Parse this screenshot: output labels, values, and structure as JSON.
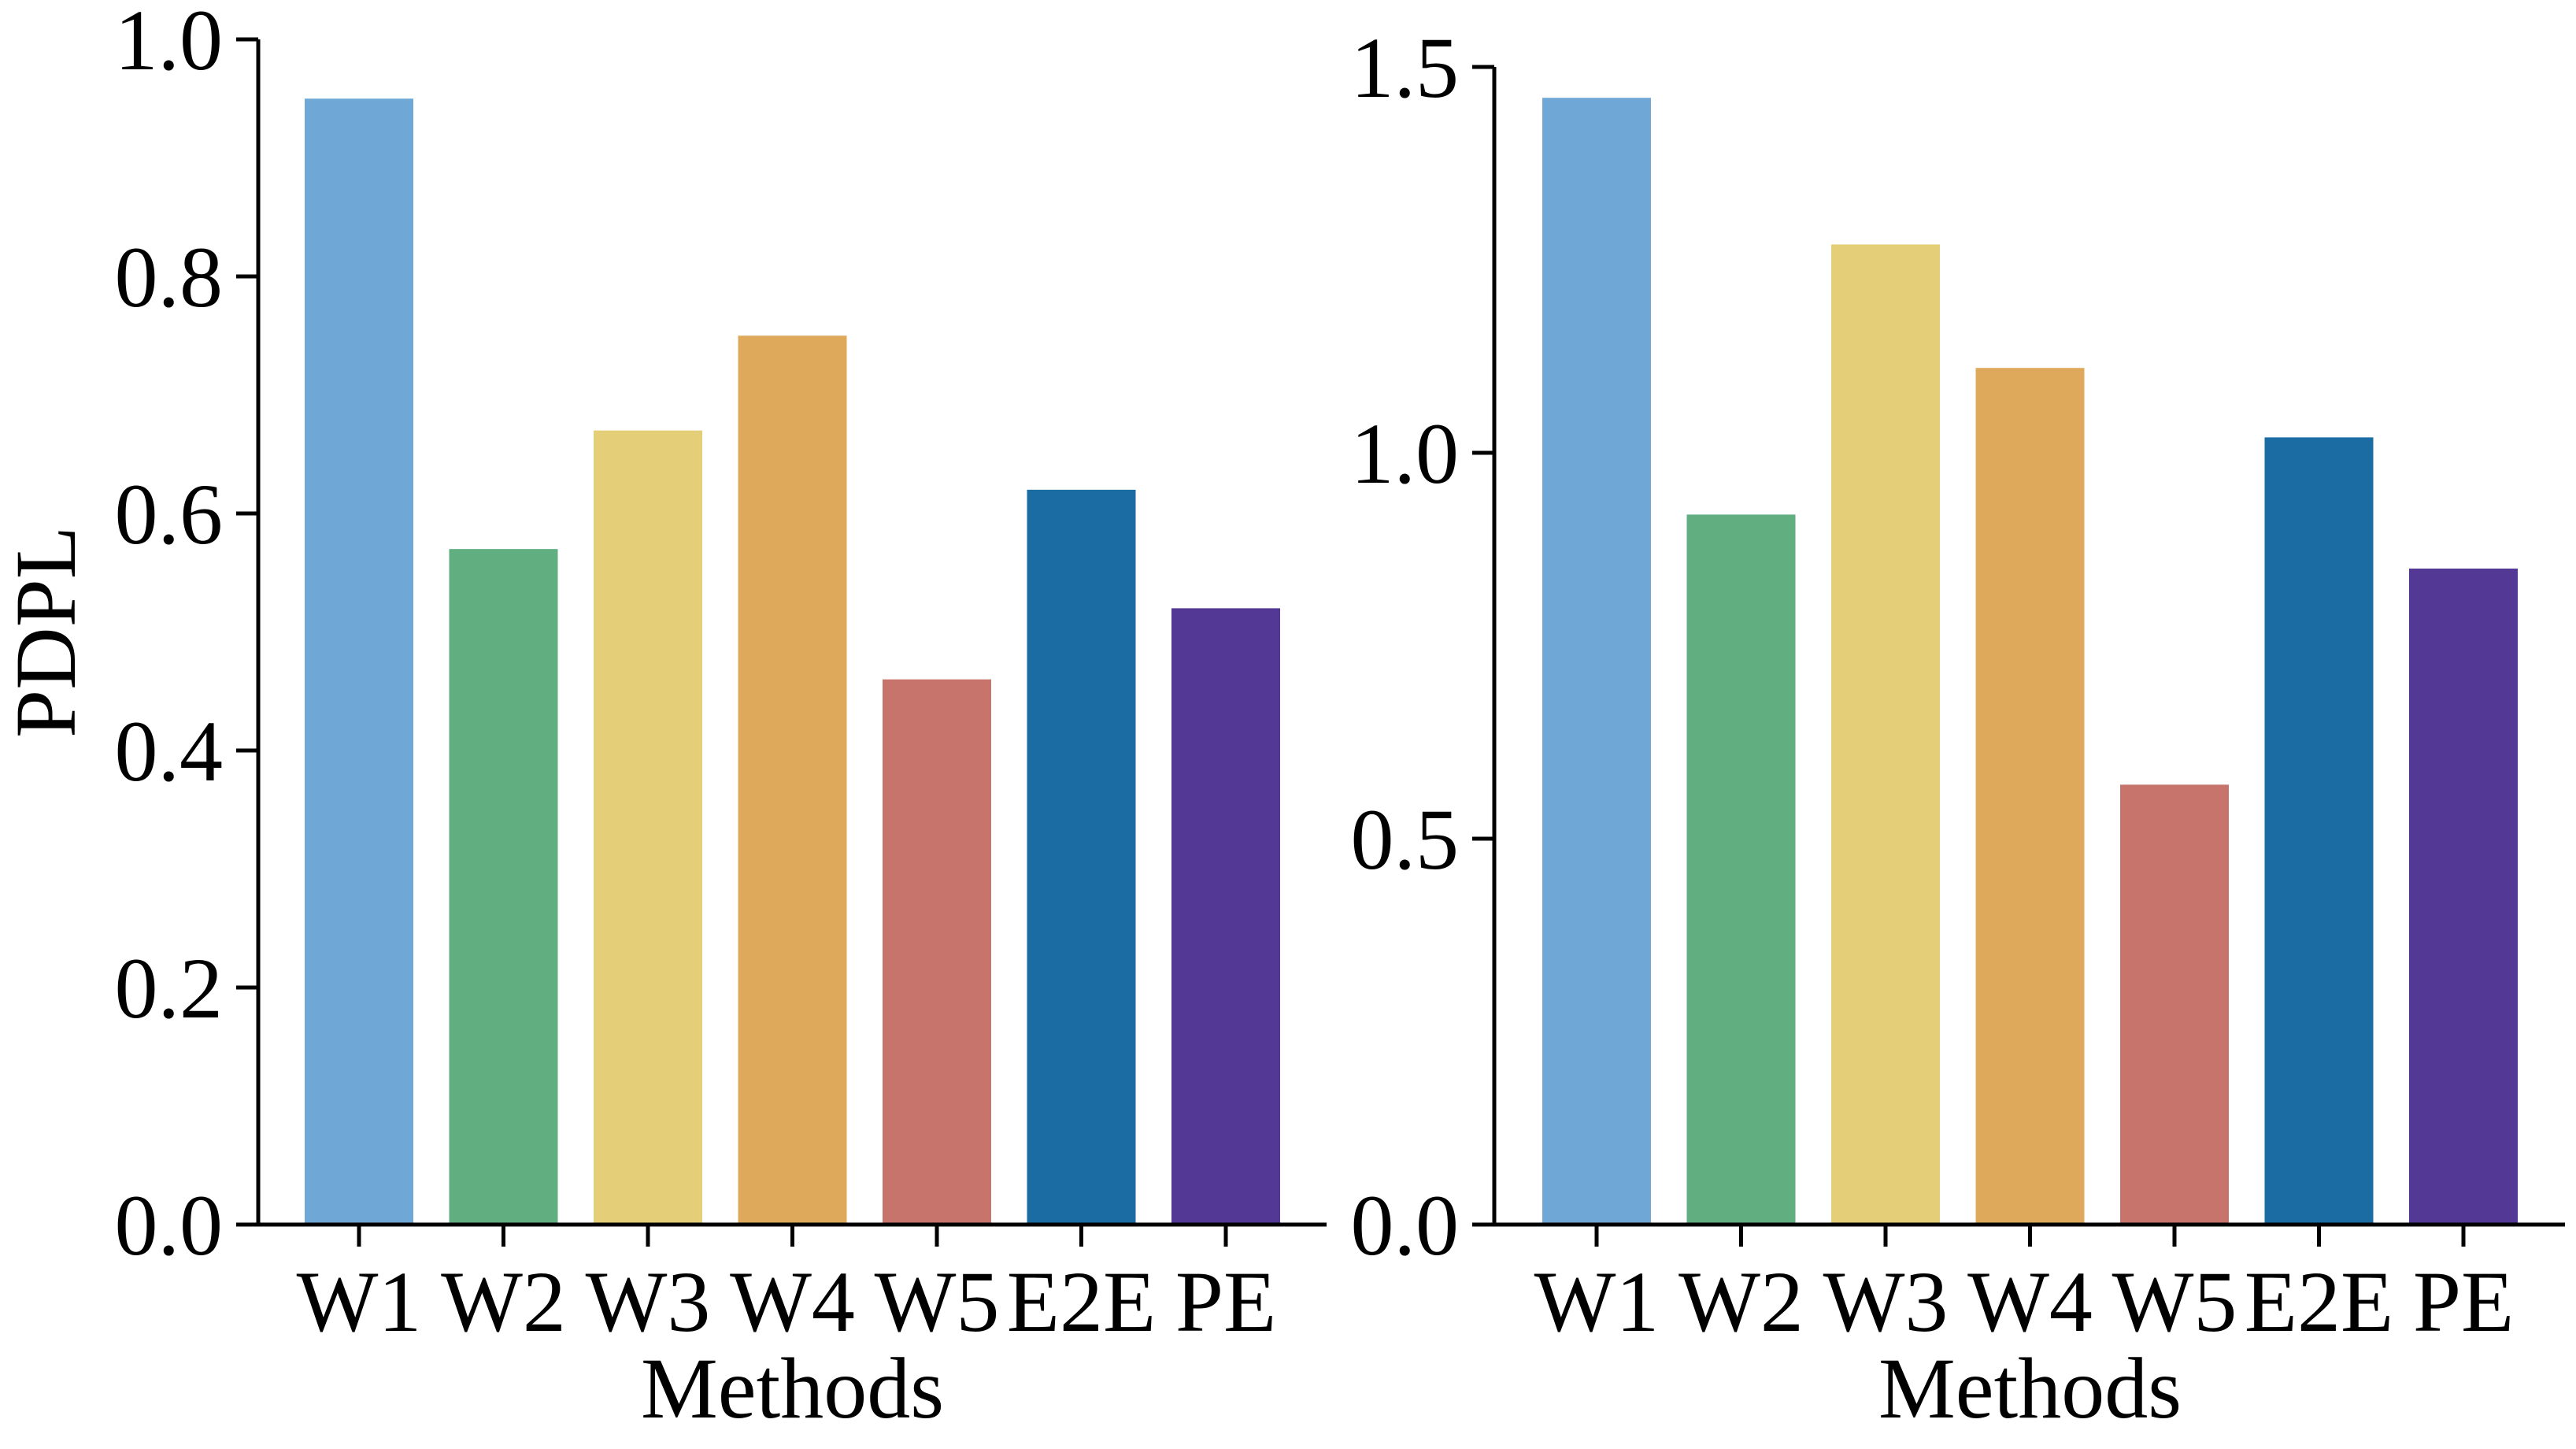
{
  "chart_data": [
    {
      "type": "bar",
      "title": "",
      "categories": [
        "W1",
        "W2",
        "W3",
        "W4",
        "W5",
        "E2E",
        "PE"
      ],
      "values": [
        0.95,
        0.57,
        0.67,
        0.75,
        0.46,
        0.62,
        0.52
      ],
      "colors": [
        "#6fa8d6",
        "#61af81",
        "#e4cf78",
        "#dfa95b",
        "#c6746c",
        "#1a6ca3",
        "#533895"
      ],
      "xlabel": "Methods",
      "ylabel": "PDPL",
      "ylim": [
        0.0,
        1.0
      ],
      "yticks": [
        "0.0",
        "0.2",
        "0.4",
        "0.6",
        "0.8",
        "1.0"
      ],
      "ytick_values": [
        0.0,
        0.2,
        0.4,
        0.6,
        0.8,
        1.0
      ],
      "grid": false
    },
    {
      "type": "bar",
      "title": "",
      "categories": [
        "W1",
        "W2",
        "W3",
        "W4",
        "W5",
        "E2E",
        "PE"
      ],
      "values": [
        1.46,
        0.92,
        1.27,
        1.11,
        0.57,
        1.02,
        0.85
      ],
      "colors": [
        "#6fa8d6",
        "#61af81",
        "#e4cf78",
        "#dfa95b",
        "#c6746c",
        "#1a6ca3",
        "#533895"
      ],
      "xlabel": "Methods",
      "ylabel": "",
      "ylim": [
        0.0,
        1.5
      ],
      "yticks": [
        "0.0",
        "0.5",
        "1.0",
        "1.5"
      ],
      "ytick_values": [
        0.0,
        0.5,
        1.0,
        1.5
      ],
      "grid": false
    }
  ]
}
